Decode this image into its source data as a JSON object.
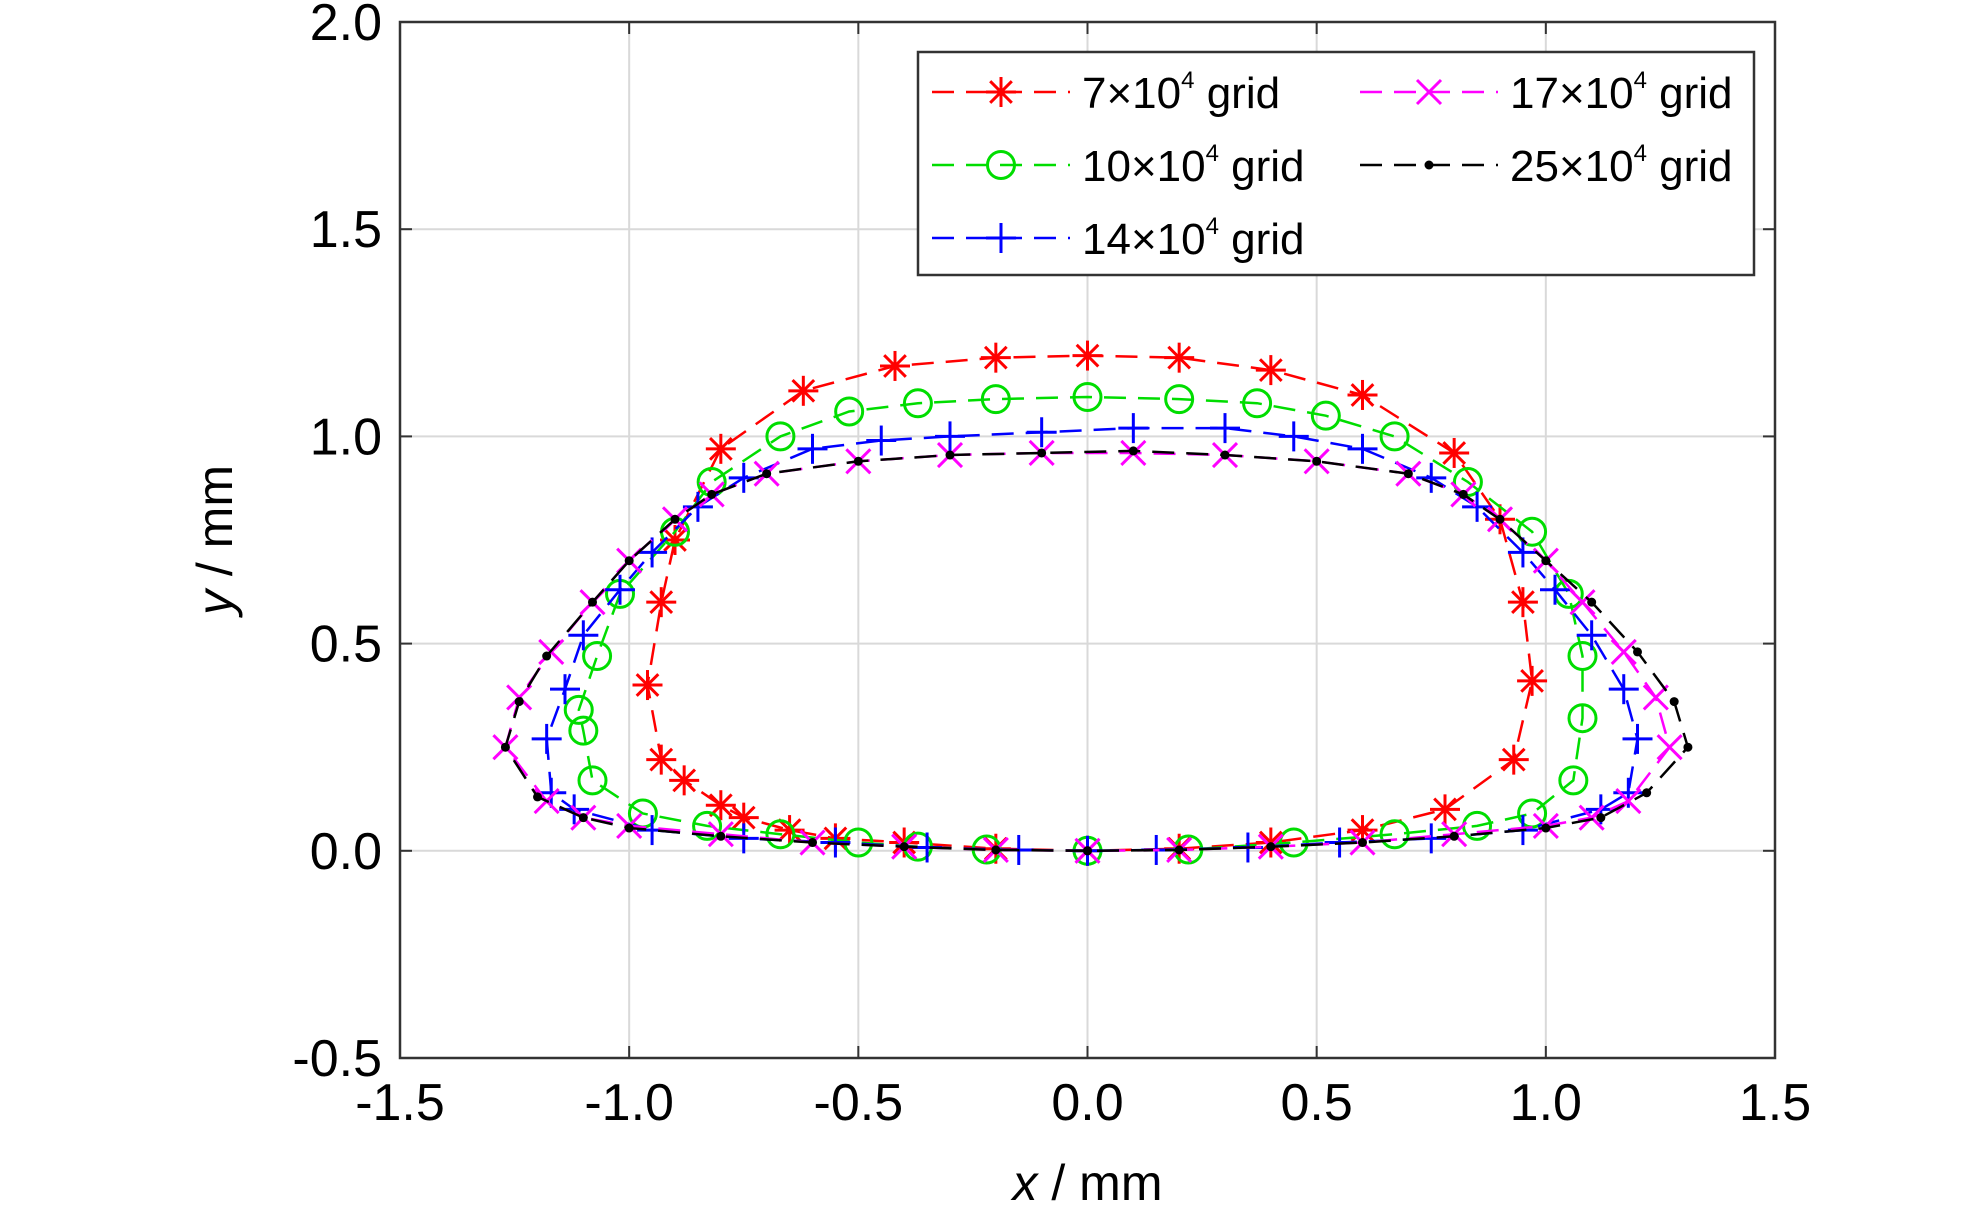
{
  "chart_data": {
    "type": "line",
    "xlabel_var": "x",
    "xlabel_unit": " / mm",
    "ylabel_var": "y",
    "ylabel_unit": " / mm",
    "xlim": [
      -1.5,
      1.5
    ],
    "ylim": [
      -0.5,
      2.0
    ],
    "xticks": [
      -1.5,
      -1.0,
      -0.5,
      0.0,
      0.5,
      1.0,
      1.5
    ],
    "yticks": [
      -0.5,
      0.0,
      0.5,
      1.0,
      1.5,
      2.0
    ],
    "xtick_labels": [
      "-1.5",
      "-1.0",
      "-0.5",
      "0.0",
      "0.5",
      "1.0",
      "1.5"
    ],
    "ytick_labels": [
      "-0.5",
      "0.0",
      "0.5",
      "1.0",
      "1.5",
      "2.0"
    ],
    "grid": true,
    "legend_position": "top-right",
    "series": [
      {
        "name": "7×10⁴ grid",
        "label_prefix": "7×10",
        "label_sup": "4",
        "label_suffix": " grid",
        "color": "#ff0000",
        "marker": "asterisk",
        "x": [
          0.0,
          -0.2,
          -0.4,
          -0.55,
          -0.65,
          -0.75,
          -0.8,
          -0.88,
          -0.93,
          -0.96,
          -0.93,
          -0.9,
          -0.8,
          -0.62,
          -0.42,
          -0.2,
          0.0,
          0.2,
          0.4,
          0.6,
          0.8,
          0.9,
          0.95,
          0.97,
          0.93,
          0.78,
          0.6,
          0.4,
          0.2,
          0.0
        ],
        "y": [
          0.0,
          0.005,
          0.02,
          0.03,
          0.05,
          0.08,
          0.11,
          0.17,
          0.22,
          0.4,
          0.6,
          0.75,
          0.97,
          1.11,
          1.17,
          1.19,
          1.195,
          1.19,
          1.16,
          1.1,
          0.96,
          0.8,
          0.6,
          0.41,
          0.22,
          0.1,
          0.05,
          0.02,
          0.005,
          0.0
        ]
      },
      {
        "name": "10×10⁴ grid",
        "label_prefix": "10×10",
        "label_sup": "4",
        "label_suffix": " grid",
        "color": "#00dd00",
        "marker": "circle",
        "x": [
          0.0,
          -0.22,
          -0.37,
          -0.5,
          -0.67,
          -0.83,
          -0.97,
          -1.08,
          -1.1,
          -1.11,
          -1.07,
          -1.02,
          -0.9,
          -0.82,
          -0.67,
          -0.52,
          -0.37,
          -0.2,
          0.0,
          0.2,
          0.37,
          0.52,
          0.67,
          0.83,
          0.97,
          1.05,
          1.08,
          1.08,
          1.06,
          0.97,
          0.85,
          0.67,
          0.45,
          0.22,
          0.0
        ],
        "y": [
          0.0,
          0.003,
          0.01,
          0.02,
          0.04,
          0.06,
          0.09,
          0.17,
          0.29,
          0.34,
          0.47,
          0.62,
          0.77,
          0.89,
          1.0,
          1.06,
          1.08,
          1.09,
          1.095,
          1.09,
          1.08,
          1.05,
          1.0,
          0.89,
          0.77,
          0.62,
          0.47,
          0.32,
          0.17,
          0.09,
          0.06,
          0.04,
          0.02,
          0.003,
          0.0
        ]
      },
      {
        "name": "14×10⁴ grid",
        "label_prefix": "14×10",
        "label_sup": "4",
        "label_suffix": " grid",
        "color": "#0000ff",
        "marker": "plus",
        "x": [
          0.0,
          -0.15,
          -0.35,
          -0.55,
          -0.75,
          -0.95,
          -1.12,
          -1.17,
          -1.18,
          -1.14,
          -1.1,
          -1.02,
          -0.95,
          -0.85,
          -0.75,
          -0.6,
          -0.45,
          -0.3,
          -0.1,
          0.1,
          0.3,
          0.45,
          0.6,
          0.75,
          0.85,
          0.95,
          1.02,
          1.1,
          1.17,
          1.2,
          1.18,
          1.12,
          0.95,
          0.75,
          0.55,
          0.35,
          0.15,
          0.0
        ],
        "y": [
          0.0,
          0.002,
          0.008,
          0.02,
          0.03,
          0.05,
          0.1,
          0.14,
          0.27,
          0.39,
          0.52,
          0.63,
          0.72,
          0.83,
          0.9,
          0.97,
          0.99,
          1.0,
          1.01,
          1.02,
          1.02,
          1.0,
          0.97,
          0.9,
          0.83,
          0.72,
          0.63,
          0.52,
          0.39,
          0.27,
          0.14,
          0.1,
          0.05,
          0.03,
          0.02,
          0.008,
          0.002,
          0.0
        ]
      },
      {
        "name": "17×10⁴ grid",
        "label_prefix": "17×10",
        "label_sup": "4",
        "label_suffix": " grid",
        "color": "#ff00ff",
        "marker": "x",
        "x": [
          0.0,
          -0.2,
          -0.4,
          -0.6,
          -0.8,
          -1.0,
          -1.1,
          -1.18,
          -1.27,
          -1.24,
          -1.17,
          -1.08,
          -1.0,
          -0.9,
          -0.82,
          -0.7,
          -0.5,
          -0.3,
          -0.1,
          0.1,
          0.3,
          0.5,
          0.7,
          0.82,
          0.9,
          1.0,
          1.08,
          1.17,
          1.24,
          1.27,
          1.18,
          1.1,
          1.0,
          0.8,
          0.6,
          0.4,
          0.2,
          0.0
        ],
        "y": [
          0.0,
          0.002,
          0.01,
          0.02,
          0.04,
          0.06,
          0.08,
          0.12,
          0.25,
          0.37,
          0.48,
          0.6,
          0.7,
          0.8,
          0.86,
          0.91,
          0.94,
          0.955,
          0.96,
          0.96,
          0.955,
          0.94,
          0.91,
          0.86,
          0.8,
          0.7,
          0.6,
          0.48,
          0.37,
          0.25,
          0.12,
          0.08,
          0.06,
          0.04,
          0.02,
          0.01,
          0.002,
          0.0
        ]
      },
      {
        "name": "25×10⁴ grid",
        "label_prefix": "25×10",
        "label_sup": "4",
        "label_suffix": " grid",
        "color": "#000000",
        "marker": "dot",
        "x": [
          0.0,
          -0.2,
          -0.4,
          -0.6,
          -0.8,
          -1.0,
          -1.1,
          -1.2,
          -1.27,
          -1.24,
          -1.18,
          -1.08,
          -1.0,
          -0.9,
          -0.82,
          -0.7,
          -0.5,
          -0.3,
          -0.1,
          0.1,
          0.3,
          0.5,
          0.7,
          0.82,
          0.9,
          1.0,
          1.1,
          1.2,
          1.28,
          1.31,
          1.22,
          1.12,
          1.0,
          0.8,
          0.6,
          0.4,
          0.2,
          0.0
        ],
        "y": [
          0.0,
          0.002,
          0.01,
          0.02,
          0.035,
          0.055,
          0.08,
          0.13,
          0.25,
          0.36,
          0.47,
          0.6,
          0.7,
          0.8,
          0.86,
          0.91,
          0.94,
          0.955,
          0.96,
          0.965,
          0.955,
          0.94,
          0.91,
          0.86,
          0.8,
          0.7,
          0.6,
          0.48,
          0.36,
          0.25,
          0.14,
          0.08,
          0.055,
          0.035,
          0.02,
          0.01,
          0.002,
          0.0
        ]
      }
    ]
  }
}
